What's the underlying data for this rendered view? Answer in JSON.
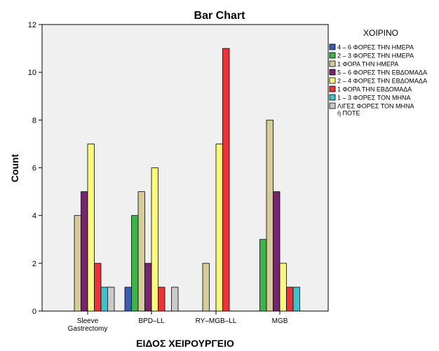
{
  "chart_data": {
    "type": "bar",
    "title": "Bar Chart",
    "xlabel": "ΕΙΔΟΣ ΧΕΙΡΟΥΡΓΕΙΟ",
    "ylabel": "Count",
    "ylim": [
      0,
      12
    ],
    "yticks": [
      0,
      2,
      4,
      6,
      8,
      10,
      12
    ],
    "grid": false,
    "legend": {
      "title": "ΧΟΙΡΙΝΟ",
      "placement": "right"
    },
    "categories": [
      "Sleeve\nGastrectomy",
      "BPD-LL",
      "RY-MGB-LL",
      "MGB"
    ],
    "series": [
      {
        "name": "4 - 6 ΦΟΡΕΣ ΤΗΝ ΗΜΕΡΑ",
        "color": "#3b5db0",
        "values": [
          0,
          1,
          0,
          0
        ]
      },
      {
        "name": "2 - 3 ΦΟΡΕΣ ΤΗΝ ΗΜΕΡΑ",
        "color": "#3db34a",
        "values": [
          0,
          4,
          0,
          3
        ]
      },
      {
        "name": "1 ΦΟΡΑ ΤΗΝ ΗΜΕΡΑ",
        "color": "#d4cc99",
        "values": [
          4,
          5,
          2,
          8
        ]
      },
      {
        "name": "5 - 6 ΦΟΡΕΣ ΤΗΝ ΕΒΔΟΜΑΔΑ",
        "color": "#76256f",
        "values": [
          5,
          2,
          0,
          5
        ]
      },
      {
        "name": "2 - 4 ΦΟΡΕΣ ΤΗΝ ΕΒΔΟΜΑΔΑ",
        "color": "#fbf97b",
        "values": [
          7,
          6,
          7,
          2
        ]
      },
      {
        "name": "1 ΦΟΡΑ ΤΗΝ ΕΒΔΟΜΑΔΑ",
        "color": "#e8343a",
        "values": [
          2,
          1,
          11,
          1
        ]
      },
      {
        "name": "1 - 3 ΦΟΡΕΣ ΤΟΝ ΜΗΝΑ",
        "color": "#43bfc7",
        "values": [
          1,
          0,
          0,
          1
        ]
      },
      {
        "name": "ΛΙΓΕΣ ΦΟΡΕΣ ΤΟΝ ΜΗΝΑ ή ΠΟΤΕ",
        "color": "#cacaca",
        "values": [
          1,
          1,
          0,
          0
        ]
      }
    ]
  }
}
